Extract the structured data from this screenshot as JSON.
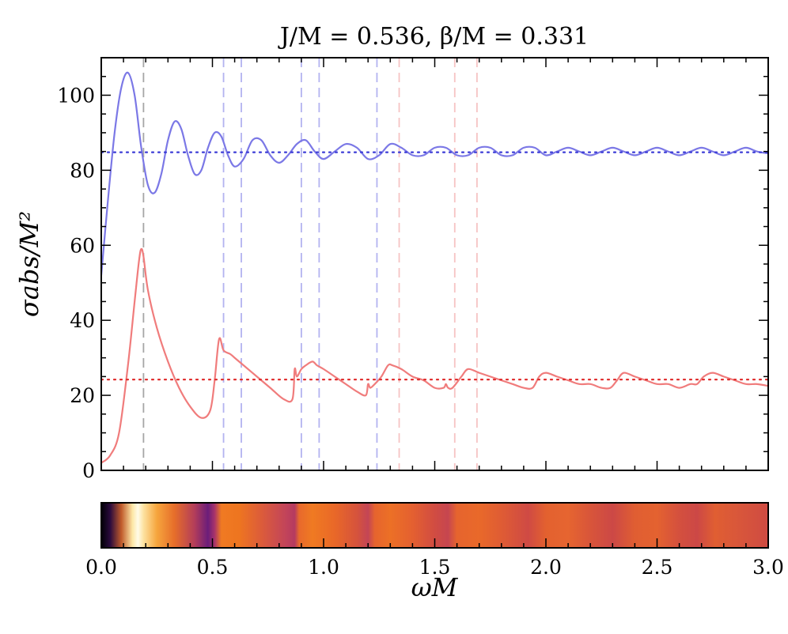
{
  "chart_data": [
    {
      "type": "line",
      "title": "J/M = 0.536, β/M = 0.331",
      "xlabel": "ωM",
      "ylabel": "σabs/M²",
      "xlim": [
        0,
        3
      ],
      "ylim": [
        0,
        110
      ],
      "yticks": [
        "0",
        "20",
        "40",
        "60",
        "80",
        "100"
      ],
      "grid": false,
      "series": [
        {
          "color": "#7b78e6",
          "style": "solid",
          "x": [
            0.0,
            0.03,
            0.06,
            0.09,
            0.12,
            0.15,
            0.18,
            0.21,
            0.24,
            0.27,
            0.3,
            0.33,
            0.36,
            0.39,
            0.42,
            0.45,
            0.48,
            0.51,
            0.54,
            0.57,
            0.6,
            0.64,
            0.68,
            0.72,
            0.76,
            0.8,
            0.84,
            0.88,
            0.92,
            0.96,
            1.0,
            1.05,
            1.1,
            1.15,
            1.2,
            1.25,
            1.3,
            1.35,
            1.4,
            1.45,
            1.5,
            1.55,
            1.6,
            1.65,
            1.7,
            1.75,
            1.8,
            1.85,
            1.9,
            1.95,
            2.0,
            2.05,
            2.1,
            2.15,
            2.2,
            2.25,
            2.3,
            2.35,
            2.4,
            2.45,
            2.5,
            2.55,
            2.6,
            2.65,
            2.7,
            2.75,
            2.8,
            2.85,
            2.9,
            2.95,
            3.0
          ],
          "y": [
            52,
            72,
            90,
            102,
            106,
            100,
            86,
            76,
            74,
            79,
            88,
            93,
            91,
            84,
            79,
            80,
            86,
            90,
            89,
            84,
            81,
            83,
            88,
            88,
            84,
            82,
            84,
            87,
            88,
            85,
            83,
            85,
            87,
            86,
            83,
            84,
            87,
            86,
            84,
            84,
            86,
            86,
            84,
            84,
            86,
            86,
            84,
            84,
            86,
            86,
            84,
            85,
            86,
            85,
            84,
            85,
            86,
            85,
            84,
            85,
            86,
            85,
            84,
            85,
            86,
            85,
            84,
            85,
            86,
            85,
            84.5
          ]
        },
        {
          "color": "#f07c7c",
          "style": "solid",
          "x": [
            0.0,
            0.04,
            0.08,
            0.12,
            0.15,
            0.17,
            0.18,
            0.19,
            0.21,
            0.25,
            0.3,
            0.35,
            0.4,
            0.45,
            0.49,
            0.51,
            0.53,
            0.55,
            0.58,
            0.6,
            0.64,
            0.7,
            0.76,
            0.82,
            0.86,
            0.87,
            0.88,
            0.9,
            0.92,
            0.95,
            0.97,
            1.0,
            1.05,
            1.1,
            1.15,
            1.19,
            1.2,
            1.21,
            1.23,
            1.26,
            1.29,
            1.31,
            1.35,
            1.4,
            1.45,
            1.5,
            1.54,
            1.55,
            1.56,
            1.58,
            1.62,
            1.65,
            1.7,
            1.75,
            1.8,
            1.85,
            1.9,
            1.94,
            1.97,
            2.0,
            2.05,
            2.1,
            2.15,
            2.2,
            2.25,
            2.29,
            2.32,
            2.35,
            2.4,
            2.45,
            2.5,
            2.55,
            2.6,
            2.65,
            2.68,
            2.71,
            2.75,
            2.8,
            2.85,
            2.9,
            2.95,
            3.0
          ],
          "y": [
            2,
            4,
            10,
            28,
            45,
            56,
            59,
            57,
            48,
            38,
            29,
            22,
            17,
            14,
            16,
            24,
            35,
            32,
            31,
            30,
            28,
            25,
            22,
            19,
            19,
            27,
            25,
            27,
            28,
            29,
            28,
            27,
            25,
            23,
            21,
            20,
            23,
            22,
            23,
            25,
            28,
            28,
            27,
            25,
            24,
            22,
            22,
            23,
            22,
            22,
            25,
            27,
            26,
            25,
            24,
            23,
            22,
            22,
            25,
            26,
            25,
            24,
            23,
            23,
            22,
            22,
            24,
            26,
            25,
            24,
            23,
            23,
            22,
            23,
            23,
            25,
            26,
            25,
            24,
            23,
            23,
            22.5
          ]
        },
        {
          "color": "#3b3bd6",
          "style": "dotted",
          "x": [
            0,
            3
          ],
          "y": [
            84.8,
            84.8
          ]
        },
        {
          "color": "#e03030",
          "style": "dotted",
          "x": [
            0,
            3
          ],
          "y": [
            24.2,
            24.2
          ]
        }
      ],
      "vlines": [
        {
          "x": 0.19,
          "color": "#a6a6a6"
        },
        {
          "x": 0.55,
          "color": "#b3b3f0"
        },
        {
          "x": 0.63,
          "color": "#b3b3f0"
        },
        {
          "x": 0.9,
          "color": "#b3b3f0"
        },
        {
          "x": 0.98,
          "color": "#b3b3f0"
        },
        {
          "x": 1.24,
          "color": "#b3b3f0"
        },
        {
          "x": 1.34,
          "color": "#f6c4c4"
        },
        {
          "x": 1.59,
          "color": "#f6c4c4"
        },
        {
          "x": 1.69,
          "color": "#f6c4c4"
        }
      ]
    },
    {
      "type": "heatmap",
      "xlabel": "ωM",
      "xlim": [
        0,
        3
      ],
      "xticks": [
        "0.0",
        "0.5",
        "1.0",
        "1.5",
        "2.0",
        "2.5",
        "3.0"
      ],
      "colormap": "inferno",
      "stops": [
        {
          "x": 0.0,
          "color": "#000004"
        },
        {
          "x": 0.04,
          "color": "#2a0a3d"
        },
        {
          "x": 0.09,
          "color": "#c05a2a"
        },
        {
          "x": 0.14,
          "color": "#fde7a6"
        },
        {
          "x": 0.165,
          "color": "#fffbe8"
        },
        {
          "x": 0.19,
          "color": "#fde2a0"
        },
        {
          "x": 0.25,
          "color": "#f6a53d"
        },
        {
          "x": 0.33,
          "color": "#e66d2a"
        },
        {
          "x": 0.42,
          "color": "#b33d5a"
        },
        {
          "x": 0.48,
          "color": "#6b1d7a"
        },
        {
          "x": 0.51,
          "color": "#a8336a"
        },
        {
          "x": 0.54,
          "color": "#f07a22"
        },
        {
          "x": 0.62,
          "color": "#ee7520"
        },
        {
          "x": 0.72,
          "color": "#dc5c3a"
        },
        {
          "x": 0.83,
          "color": "#c2445a"
        },
        {
          "x": 0.87,
          "color": "#b53a60"
        },
        {
          "x": 0.89,
          "color": "#e8692c"
        },
        {
          "x": 0.95,
          "color": "#f07a22"
        },
        {
          "x": 1.05,
          "color": "#e96828"
        },
        {
          "x": 1.15,
          "color": "#d6533c"
        },
        {
          "x": 1.2,
          "color": "#c34556"
        },
        {
          "x": 1.23,
          "color": "#e6642e"
        },
        {
          "x": 1.3,
          "color": "#ec7026"
        },
        {
          "x": 1.4,
          "color": "#e46030"
        },
        {
          "x": 1.5,
          "color": "#d14c42"
        },
        {
          "x": 1.56,
          "color": "#c64650"
        },
        {
          "x": 1.6,
          "color": "#e6642e"
        },
        {
          "x": 1.7,
          "color": "#e9692a"
        },
        {
          "x": 1.8,
          "color": "#df5c34"
        },
        {
          "x": 1.92,
          "color": "#cf4a44"
        },
        {
          "x": 2.0,
          "color": "#e3612f"
        },
        {
          "x": 2.1,
          "color": "#e66530"
        },
        {
          "x": 2.2,
          "color": "#d8553a"
        },
        {
          "x": 2.3,
          "color": "#cc4846"
        },
        {
          "x": 2.4,
          "color": "#e05e32"
        },
        {
          "x": 2.5,
          "color": "#e46230"
        },
        {
          "x": 2.6,
          "color": "#d4503e"
        },
        {
          "x": 2.68,
          "color": "#cc4846"
        },
        {
          "x": 2.76,
          "color": "#e05e32"
        },
        {
          "x": 2.86,
          "color": "#d9573a"
        },
        {
          "x": 3.0,
          "color": "#cf4b42"
        }
      ]
    }
  ]
}
